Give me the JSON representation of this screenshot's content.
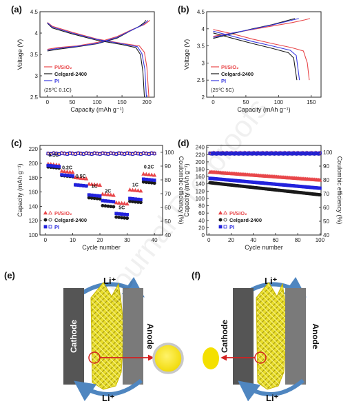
{
  "watermark": "Journal Pre-proofs",
  "chart_data": [
    {
      "panel": "(a)",
      "type": "line",
      "xlabel": "Capacity (mAh g⁻¹)",
      "ylabel": "Voltage (V)",
      "xlim": [
        -15,
        215
      ],
      "ylim": [
        2.5,
        4.5
      ],
      "xticks": [
        0,
        50,
        100,
        150,
        200
      ],
      "yticks": [
        2.5,
        3.0,
        3.5,
        4.0,
        4.5
      ],
      "legend_position": "lower-left",
      "series": [
        {
          "name": "PI/SiO₂",
          "color": "#e8474a",
          "charge": [
            [
              0,
              3.62
            ],
            [
              20,
              3.66
            ],
            [
              60,
              3.7
            ],
            [
              100,
              3.78
            ],
            [
              140,
              3.92
            ],
            [
              170,
              4.08
            ],
            [
              195,
              4.2
            ],
            [
              203,
              4.27
            ],
            [
              206,
              4.3
            ]
          ],
          "discharge": [
            [
              0,
              4.25
            ],
            [
              10,
              4.16
            ],
            [
              50,
              4.02
            ],
            [
              100,
              3.86
            ],
            [
              150,
              3.76
            ],
            [
              185,
              3.7
            ],
            [
              195,
              3.55
            ],
            [
              200,
              3.2
            ],
            [
              204,
              2.5
            ]
          ]
        },
        {
          "name": "Celgard-2400",
          "color": "#1a1a1a",
          "charge": [
            [
              0,
              3.58
            ],
            [
              20,
              3.62
            ],
            [
              60,
              3.68
            ],
            [
              100,
              3.75
            ],
            [
              140,
              3.88
            ],
            [
              165,
              4.04
            ],
            [
              185,
              4.16
            ],
            [
              195,
              4.25
            ],
            [
              198,
              4.3
            ]
          ],
          "discharge": [
            [
              0,
              4.23
            ],
            [
              10,
              4.12
            ],
            [
              50,
              3.98
            ],
            [
              100,
              3.83
            ],
            [
              150,
              3.73
            ],
            [
              178,
              3.66
            ],
            [
              187,
              3.5
            ],
            [
              192,
              3.1
            ],
            [
              195,
              2.5
            ]
          ]
        },
        {
          "name": "PI",
          "color": "#3a3ae0",
          "charge": [
            [
              0,
              3.6
            ],
            [
              20,
              3.64
            ],
            [
              60,
              3.69
            ],
            [
              100,
              3.76
            ],
            [
              140,
              3.9
            ],
            [
              168,
              4.06
            ],
            [
              190,
              4.18
            ],
            [
              199,
              4.26
            ],
            [
              202,
              4.3
            ]
          ],
          "discharge": [
            [
              0,
              4.24
            ],
            [
              10,
              4.14
            ],
            [
              50,
              4.0
            ],
            [
              100,
              3.85
            ],
            [
              150,
              3.75
            ],
            [
              181,
              3.68
            ],
            [
              190,
              3.52
            ],
            [
              196,
              3.15
            ],
            [
              199,
              2.5
            ]
          ]
        }
      ],
      "annotation": "(25℃ 0.1C)"
    },
    {
      "panel": "(b)",
      "type": "line",
      "xlabel": "Capacity (mAh g⁻¹)",
      "ylabel": "Voltage (V)",
      "xlim": [
        -10,
        165
      ],
      "ylim": [
        2.0,
        4.5
      ],
      "xticks": [
        0,
        50,
        100,
        150
      ],
      "yticks": [
        2.0,
        2.5,
        3.0,
        3.5,
        4.0,
        4.5
      ],
      "legend_position": "lower-left",
      "series": [
        {
          "name": "PI/SiO₂",
          "color": "#e8474a",
          "charge": [
            [
              0,
              3.78
            ],
            [
              30,
              3.88
            ],
            [
              60,
              3.98
            ],
            [
              90,
              4.08
            ],
            [
              120,
              4.18
            ],
            [
              140,
              4.26
            ],
            [
              148,
              4.3
            ]
          ],
          "discharge": [
            [
              0,
              3.98
            ],
            [
              30,
              3.85
            ],
            [
              60,
              3.7
            ],
            [
              90,
              3.57
            ],
            [
              120,
              3.45
            ],
            [
              138,
              3.35
            ],
            [
              144,
              3.0
            ],
            [
              147,
              2.5
            ]
          ]
        },
        {
          "name": "Celgard-2400",
          "color": "#1a1a1a",
          "charge": [
            [
              0,
              3.72
            ],
            [
              30,
              3.86
            ],
            [
              60,
              4.0
            ],
            [
              90,
              4.12
            ],
            [
              115,
              4.25
            ],
            [
              125,
              4.3
            ]
          ],
          "discharge": [
            [
              0,
              3.88
            ],
            [
              30,
              3.72
            ],
            [
              60,
              3.57
            ],
            [
              90,
              3.43
            ],
            [
              115,
              3.3
            ],
            [
              123,
              3.15
            ],
            [
              128,
              2.5
            ]
          ]
        },
        {
          "name": "PI",
          "color": "#3a3ae0",
          "charge": [
            [
              0,
              3.75
            ],
            [
              30,
              3.88
            ],
            [
              60,
              3.99
            ],
            [
              90,
              4.11
            ],
            [
              118,
              4.24
            ],
            [
              131,
              4.3
            ]
          ],
          "discharge": [
            [
              0,
              3.93
            ],
            [
              30,
              3.78
            ],
            [
              60,
              3.63
            ],
            [
              90,
              3.5
            ],
            [
              118,
              3.37
            ],
            [
              127,
              3.22
            ],
            [
              132,
              2.5
            ]
          ]
        }
      ],
      "annotation": "(25℃ 5C)"
    },
    {
      "panel": "(c)",
      "type": "scatter",
      "xlabel": "Cycle number",
      "ylabel": "Capacity (mAh g⁻¹)",
      "y2label": "Coulombic efficiency (%)",
      "xlim": [
        -2,
        43
      ],
      "ylim": [
        100,
        225
      ],
      "y2lim": [
        40,
        105
      ],
      "xticks": [
        0,
        10,
        20,
        30,
        40
      ],
      "yticks": [
        100,
        120,
        140,
        160,
        180,
        200,
        220
      ],
      "y2ticks": [
        40,
        50,
        60,
        70,
        80,
        90,
        100
      ],
      "legend_position": "lower-left",
      "rate_labels": [
        {
          "text": "0.1C",
          "x": 3,
          "y": 209
        },
        {
          "text": "0.2C",
          "x": 8,
          "y": 192
        },
        {
          "text": "0.5C",
          "x": 13,
          "y": 180
        },
        {
          "text": "1C",
          "x": 18,
          "y": 166
        },
        {
          "text": "2C",
          "x": 23,
          "y": 159
        },
        {
          "text": "5C",
          "x": 28,
          "y": 136
        },
        {
          "text": "1C",
          "x": 33,
          "y": 168
        },
        {
          "text": "0.2C",
          "x": 38,
          "y": 193
        }
      ],
      "series": [
        {
          "name": "PI/SiO₂",
          "color": "#e8474a",
          "marker": "triangle",
          "segments": [
            [
              1,
              5,
              199
            ],
            [
              6,
              10,
              189
            ],
            [
              11,
              15,
              180
            ],
            [
              16,
              20,
              171
            ],
            [
              21,
              25,
              157
            ],
            [
              26,
              30,
              145
            ],
            [
              31,
              35,
              163
            ],
            [
              36,
              40,
              185
            ]
          ],
          "ce": 99.5
        },
        {
          "name": "Celgard-2400",
          "color": "#1a1a1a",
          "marker": "circle",
          "segments": [
            [
              1,
              5,
              195
            ],
            [
              6,
              10,
              183
            ],
            [
              11,
              15,
              170
            ],
            [
              16,
              20,
              152
            ],
            [
              21,
              25,
              141
            ],
            [
              26,
              30,
              125
            ],
            [
              31,
              35,
              147
            ],
            [
              36,
              40,
              174
            ]
          ],
          "ce": 99.3
        },
        {
          "name": "PI",
          "color": "#2222dd",
          "marker": "square",
          "segments": [
            [
              1,
              5,
              197
            ],
            [
              6,
              10,
              184
            ],
            [
              11,
              15,
              170
            ],
            [
              16,
              20,
              156
            ],
            [
              21,
              25,
              148
            ],
            [
              26,
              30,
              130
            ],
            [
              31,
              35,
              151
            ],
            [
              36,
              40,
              178
            ]
          ],
          "ce": 99.4
        }
      ]
    },
    {
      "panel": "(d)",
      "type": "scatter",
      "xlabel": "Cycle number",
      "ylabel": "Capacity (mAh g⁻¹)",
      "y2label": "Coulombic efficiency (%)",
      "xlim": [
        -2,
        101
      ],
      "ylim": [
        0,
        245
      ],
      "y2lim": [
        40,
        105
      ],
      "xticks": [
        0,
        20,
        40,
        60,
        80,
        100
      ],
      "yticks": [
        0,
        20,
        40,
        60,
        80,
        100,
        120,
        140,
        160,
        180,
        200,
        220,
        240
      ],
      "y2ticks": [
        40,
        50,
        60,
        70,
        80,
        90,
        100
      ],
      "legend_position": "lower-left",
      "series": [
        {
          "name": "PI/SiO₂",
          "color": "#e8474a",
          "marker": "triangle",
          "start": 172,
          "end": 150,
          "ce": 99.6
        },
        {
          "name": "Celgard-2400",
          "color": "#1a1a1a",
          "marker": "circle",
          "start": 143,
          "end": 110,
          "ce": 99.4
        },
        {
          "name": "PI",
          "color": "#2222dd",
          "marker": "square",
          "start": 155,
          "end": 128,
          "ce": 99.5
        }
      ]
    }
  ],
  "schematics": {
    "e": {
      "panel": "(e)",
      "cathode": "Cathode",
      "anode": "Anode",
      "li": "Li⁺"
    },
    "f": {
      "panel": "(f)",
      "cathode": "Cathode",
      "anode": "Anode",
      "li": "Li⁺"
    }
  }
}
